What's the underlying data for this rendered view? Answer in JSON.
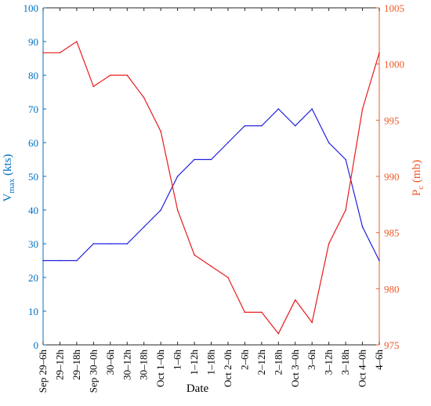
{
  "chart_data": {
    "type": "line",
    "xlabel": "Date",
    "x": [
      "Sep 29–6h",
      "29–12h",
      "29–18h",
      "Sep 30–0h",
      "30–6h",
      "30–12h",
      "30–18h",
      "Oct 1–0h",
      "1–6h",
      "1–12h",
      "1–18h",
      "Oct 2–0h",
      "2–6h",
      "2–12h",
      "2–18h",
      "Oct 3–0h",
      "3–6h",
      "3–12h",
      "3–18h",
      "Oct 4–0h",
      "4–6h"
    ],
    "y_left": {
      "label_main": "V",
      "label_sub": "max",
      "label_tail": " (kts)",
      "ylim": [
        0,
        100
      ],
      "ticks": [
        "0",
        "10",
        "20",
        "30",
        "40",
        "50",
        "60",
        "70",
        "80",
        "90",
        "100"
      ],
      "color": "#0070C0"
    },
    "y_right": {
      "label_main": "P",
      "label_sub": "c",
      "label_tail": " (mb)",
      "ylim": [
        975,
        1005
      ],
      "ticks": [
        "975",
        "980",
        "985",
        "990",
        "995",
        "1000",
        "1005"
      ],
      "color": "#ED5A2A"
    },
    "series": [
      {
        "axis": "left",
        "color": "#2020E0",
        "values": [
          25,
          25,
          25,
          30,
          30,
          30,
          35,
          40,
          50,
          55,
          55,
          60,
          65,
          65,
          70,
          65,
          70,
          60,
          55,
          35,
          25
        ]
      },
      {
        "axis": "right",
        "color": "#E81C1C",
        "values": [
          1001,
          1001,
          1002,
          998,
          999,
          999,
          997,
          994,
          987,
          983,
          982,
          981,
          977.9,
          977.9,
          976,
          979,
          977,
          984,
          987,
          996,
          1001
        ]
      }
    ]
  }
}
